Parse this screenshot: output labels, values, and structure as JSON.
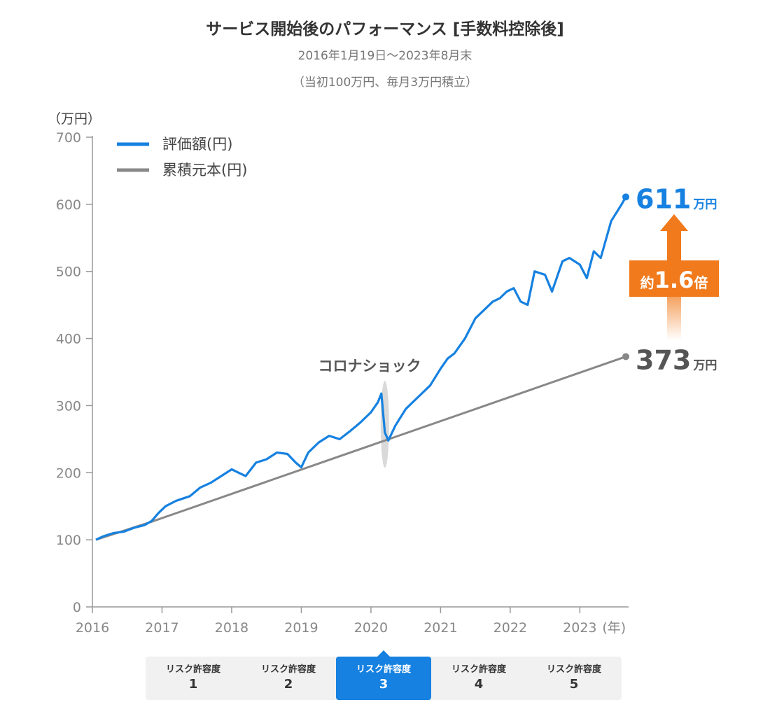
{
  "chart_data": {
    "type": "line",
    "title": "サービス開始後のパフォーマンス [手数料控除後]",
    "subtitle_lines": [
      "2016年1月19日～2023年8月末",
      "（当初100万円、毎月3万円積立）"
    ],
    "ylabel": "（万円）",
    "xlabel": "(年)",
    "ylim": [
      0,
      700
    ],
    "yticks": [
      0,
      100,
      200,
      300,
      400,
      500,
      600,
      700
    ],
    "xlim": [
      2016,
      2023.7
    ],
    "xticks": [
      2016,
      2017,
      2018,
      2019,
      2020,
      2021,
      2022,
      2023
    ],
    "legend": {
      "placement": "top-left"
    },
    "series": [
      {
        "name": "評価額(円)",
        "color": "#1681e0",
        "x": [
          2016.05,
          2016.15,
          2016.3,
          2016.45,
          2016.6,
          2016.75,
          2016.85,
          2016.95,
          2017.05,
          2017.2,
          2017.4,
          2017.55,
          2017.7,
          2017.85,
          2018.0,
          2018.1,
          2018.2,
          2018.35,
          2018.5,
          2018.65,
          2018.8,
          2018.92,
          2019.0,
          2019.1,
          2019.25,
          2019.4,
          2019.55,
          2019.7,
          2019.85,
          2020.0,
          2020.1,
          2020.15,
          2020.2,
          2020.25,
          2020.35,
          2020.5,
          2020.7,
          2020.85,
          2021.0,
          2021.1,
          2021.2,
          2021.35,
          2021.5,
          2021.6,
          2021.75,
          2021.85,
          2021.95,
          2022.05,
          2022.15,
          2022.25,
          2022.35,
          2022.5,
          2022.6,
          2022.75,
          2022.85,
          2023.0,
          2023.1,
          2023.2,
          2023.3,
          2023.45,
          2023.6,
          2023.66
        ],
        "values": [
          100,
          105,
          110,
          112,
          118,
          122,
          128,
          140,
          150,
          158,
          165,
          178,
          185,
          195,
          205,
          200,
          195,
          215,
          220,
          230,
          228,
          215,
          208,
          230,
          245,
          255,
          250,
          262,
          275,
          290,
          305,
          318,
          260,
          248,
          270,
          295,
          315,
          330,
          355,
          370,
          378,
          400,
          430,
          440,
          455,
          460,
          470,
          475,
          455,
          450,
          500,
          495,
          470,
          515,
          520,
          510,
          490,
          530,
          520,
          575,
          600,
          611
        ]
      },
      {
        "name": "累積元本(円)",
        "color": "#888888",
        "x": [
          2016.05,
          2016.85,
          2023.66
        ],
        "values": [
          100,
          127,
          373
        ]
      }
    ],
    "annotations": {
      "event_label": "コロナショック",
      "end_value_eval": "611",
      "end_value_principal": "373",
      "unit": "万円",
      "multiplier_prefix": "約",
      "multiplier": "1.6",
      "multiplier_suffix": "倍",
      "arrow_color": "#f07a1c"
    }
  },
  "tabs": [
    {
      "label": "リスク許容度",
      "number": "1",
      "active": false
    },
    {
      "label": "リスク許容度",
      "number": "2",
      "active": false
    },
    {
      "label": "リスク許容度",
      "number": "3",
      "active": true
    },
    {
      "label": "リスク許容度",
      "number": "4",
      "active": false
    },
    {
      "label": "リスク許容度",
      "number": "5",
      "active": false
    }
  ]
}
